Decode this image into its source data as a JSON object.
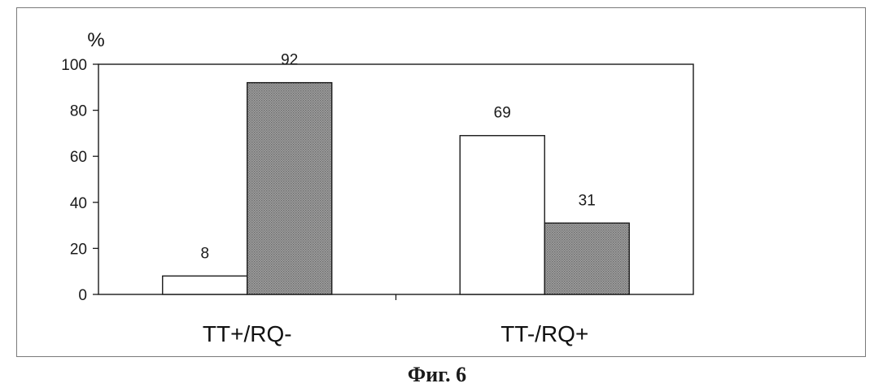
{
  "caption": "Фиг. 6",
  "colors": {
    "series_1_fill": "#ffffff",
    "series_2_fill": "#8c8c8c",
    "axis": "#1a1a1a"
  },
  "chart_data": {
    "type": "bar",
    "categories": [
      "TT+/RQ-",
      "TT-/RQ+"
    ],
    "series": [
      {
        "values": [
          8,
          69
        ]
      },
      {
        "values": [
          92,
          31
        ]
      }
    ],
    "ylabel": "%",
    "ylim": [
      0,
      100
    ],
    "yticks": [
      0,
      20,
      40,
      60,
      80,
      100
    ],
    "grid": false,
    "legend": "none",
    "data_labels": true
  }
}
